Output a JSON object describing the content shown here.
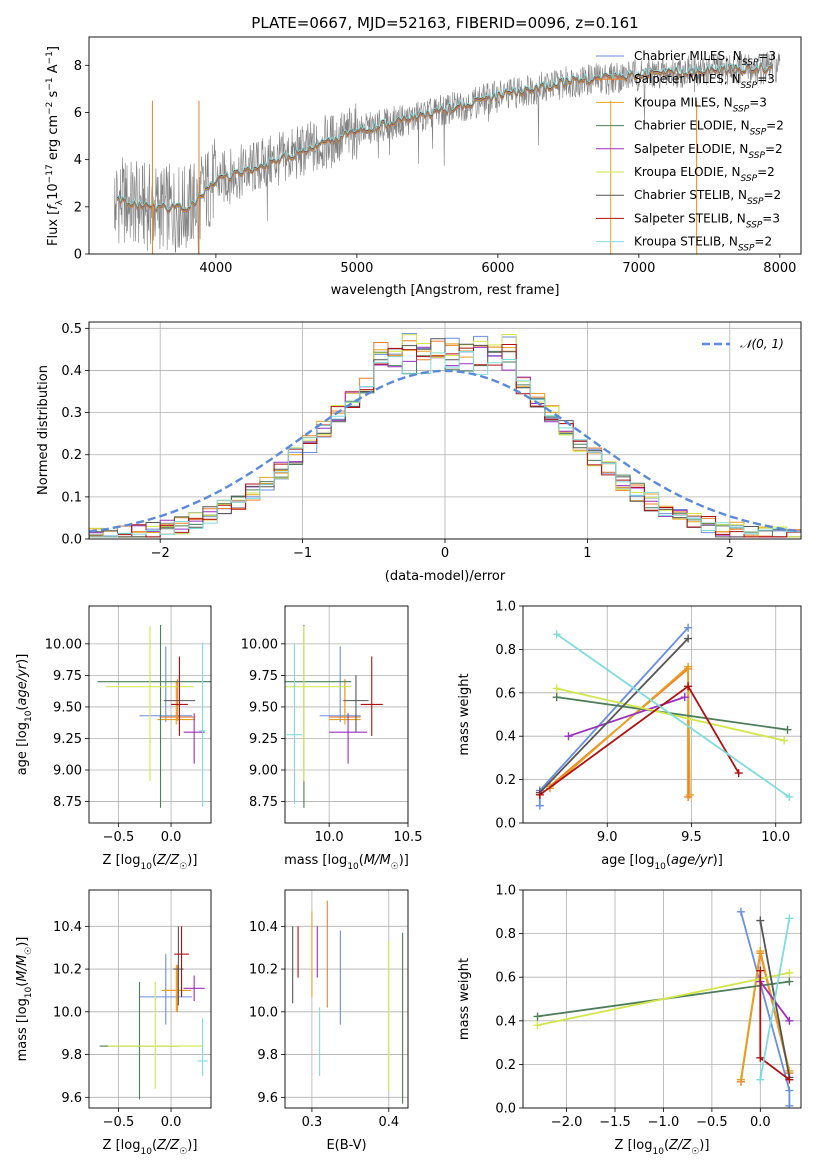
{
  "colors": {
    "chabrier_miles": "#6a8ee0",
    "salpeter_miles": "#ee7f2a",
    "kroupa_miles": "#e8a020",
    "chabrier_elodie": "#4e7d5a",
    "salpeter_elodie": "#9b2fbf",
    "kroupa_elodie": "#d2e64a",
    "chabrier_stelib": "#555555",
    "salpeter_stelib": "#b01010",
    "kroupa_stelib": "#80dcdc",
    "data": "#7f7f7f",
    "normal": "#5b8ad8",
    "grid": "#b0b0b0"
  },
  "chart_data": [
    {
      "id": "spectrum",
      "type": "line",
      "title": "PLATE=0667, MJD=52163, FIBERID=0096, z=0.161",
      "xlabel": "wavelength [Angstrom, rest frame]",
      "ylabel_parts": [
        "Flux [",
        "f",
        "λ",
        "10",
        "−17",
        " erg cm",
        "−2",
        " s",
        "−1",
        " A",
        "−1",
        "]"
      ],
      "xlim": [
        3100,
        8150
      ],
      "ylim": [
        0,
        9.2
      ],
      "xticks": [
        4000,
        5000,
        6000,
        7000,
        8000
      ],
      "yticks": [
        0,
        2,
        4,
        6,
        8
      ],
      "grid": false,
      "legend_position": "top-right",
      "legend": [
        {
          "name": "Chabrier MILES",
          "nssp": "3"
        },
        {
          "name": "Salpeter MILES",
          "nssp": "3"
        },
        {
          "name": "Kroupa MILES",
          "nssp": "3"
        },
        {
          "name": "Chabrier ELODIE",
          "nssp": "2"
        },
        {
          "name": "Salpeter ELODIE",
          "nssp": "2"
        },
        {
          "name": "Kroupa ELODIE",
          "nssp": "2"
        },
        {
          "name": "Chabrier STELIB",
          "nssp": "2"
        },
        {
          "name": "Salpeter STELIB",
          "nssp": "3"
        },
        {
          "name": "Kroupa STELIB",
          "nssp": "2"
        }
      ],
      "continuum_knots": [
        [
          3300,
          2.3
        ],
        [
          3500,
          2.0
        ],
        [
          3800,
          1.9
        ],
        [
          4000,
          3.1
        ],
        [
          4300,
          3.7
        ],
        [
          4600,
          4.3
        ],
        [
          5000,
          5.2
        ],
        [
          5500,
          5.9
        ],
        [
          6000,
          6.7
        ],
        [
          6500,
          7.3
        ],
        [
          7000,
          7.6
        ],
        [
          7500,
          7.8
        ],
        [
          8000,
          7.9
        ]
      ]
    },
    {
      "id": "residuals",
      "type": "histogram",
      "xlabel": "(data-model)/error",
      "ylabel": "Normed distribution",
      "xlim": [
        -2.5,
        2.5
      ],
      "ylim": [
        0,
        0.515
      ],
      "xticks": [
        -2,
        -1,
        0,
        1,
        2
      ],
      "yticks": [
        0.0,
        0.1,
        0.2,
        0.3,
        0.4,
        0.5
      ],
      "grid": true,
      "legend_position": "top-right",
      "legend": "𝒩(0, 1)",
      "bin_width": 0.1,
      "bin_start": -2.5,
      "reference_mean": 0,
      "reference_sigma": 1,
      "peak_values": [
        0.49,
        0.48,
        0.47,
        0.45,
        0.46
      ]
    },
    {
      "id": "z-age",
      "type": "errorbar",
      "xlabel": "Z [log10(Z/Z☉)]",
      "ylabel": "age  [log10(age/yr)]",
      "xlim": [
        -0.78,
        0.38
      ],
      "ylim": [
        8.58,
        10.3
      ],
      "xticks": [
        -0.5,
        0.0
      ],
      "yticks": [
        8.75,
        9.0,
        9.25,
        9.5,
        9.75,
        10.0
      ],
      "grid": true,
      "points": [
        {
          "series": "chabrier_miles",
          "x": -0.05,
          "xerr": 0.25,
          "y": 9.43,
          "yerr": [
            0.05,
            0.55
          ]
        },
        {
          "series": "salpeter_miles",
          "x": 0.06,
          "xerr": 0.17,
          "y": 9.42,
          "yerr": [
            0.03,
            0.3
          ]
        },
        {
          "series": "kroupa_miles",
          "x": 0.05,
          "xerr": 0.18,
          "y": 9.4,
          "yerr": [
            0.04,
            0.3
          ]
        },
        {
          "series": "chabrier_elodie",
          "x": -0.1,
          "xerr": 0.6,
          "y": 9.7,
          "yerr": [
            1.0,
            0.45
          ]
        },
        {
          "series": "salpeter_elodie",
          "x": 0.22,
          "xerr": 0.1,
          "y": 9.3,
          "yerr": [
            0.25,
            0.15
          ]
        },
        {
          "series": "kroupa_elodie",
          "x": -0.2,
          "xerr": 0.42,
          "y": 9.66,
          "yerr": [
            0.75,
            0.48
          ]
        },
        {
          "series": "chabrier_stelib",
          "x": 0.08,
          "xerr": 0.15,
          "y": 9.55,
          "yerr": [
            0.25,
            0.2
          ]
        },
        {
          "series": "salpeter_stelib",
          "x": 0.08,
          "xerr": 0.08,
          "y": 9.52,
          "yerr": [
            0.25,
            0.38
          ]
        },
        {
          "series": "kroupa_stelib",
          "x": 0.3,
          "xerr": 0.03,
          "y": 9.31,
          "yerr": [
            0.6,
            0.7
          ]
        }
      ]
    },
    {
      "id": "mass-age",
      "type": "errorbar",
      "xlabel": "mass [log10(M/M☉)]",
      "ylabel": "",
      "xlim": [
        9.72,
        10.5
      ],
      "ylim": [
        8.58,
        10.3
      ],
      "xticks": [
        10.0,
        10.5
      ],
      "yticks": [
        8.75,
        9.0,
        9.25,
        9.5,
        9.75,
        10.0
      ],
      "grid": true,
      "points": [
        {
          "series": "chabrier_miles",
          "x": 10.07,
          "xerr": 0.13,
          "y": 9.43,
          "yerr": [
            0.05,
            0.55
          ]
        },
        {
          "series": "salpeter_miles",
          "x": 10.1,
          "xerr": 0.1,
          "y": 9.42,
          "yerr": [
            0.03,
            0.3
          ]
        },
        {
          "series": "kroupa_miles",
          "x": 10.1,
          "xerr": 0.1,
          "y": 9.4,
          "yerr": [
            0.04,
            0.3
          ]
        },
        {
          "series": "chabrier_elodie",
          "x": 9.84,
          "xerr": 0.3,
          "y": 9.7,
          "yerr": [
            1.0,
            0.45
          ]
        },
        {
          "series": "salpeter_elodie",
          "x": 10.12,
          "xerr": 0.12,
          "y": 9.3,
          "yerr": [
            0.25,
            0.15
          ]
        },
        {
          "series": "kroupa_elodie",
          "x": 9.84,
          "xerr": 0.3,
          "y": 9.66,
          "yerr": [
            0.75,
            0.48
          ]
        },
        {
          "series": "chabrier_stelib",
          "x": 10.17,
          "xerr": 0.08,
          "y": 9.55,
          "yerr": [
            0.25,
            0.2
          ]
        },
        {
          "series": "salpeter_stelib",
          "x": 10.27,
          "xerr": 0.07,
          "y": 9.52,
          "yerr": [
            0.25,
            0.38
          ]
        },
        {
          "series": "kroupa_stelib",
          "x": 9.78,
          "xerr": 0.05,
          "y": 9.28,
          "yerr": [
            0.55,
            0.72
          ]
        }
      ]
    },
    {
      "id": "age-weight",
      "type": "line",
      "xlabel": "age  [log10(age/yr)]",
      "ylabel": "mass weight",
      "xlim": [
        8.5,
        10.15
      ],
      "ylim": [
        0,
        1
      ],
      "xticks": [
        9.0,
        9.5,
        10.0
      ],
      "yticks": [
        0.0,
        0.2,
        0.4,
        0.6,
        0.8,
        1.0
      ],
      "grid": true,
      "series": [
        {
          "series": "chabrier_miles",
          "points": [
            [
              8.6,
              0.08
            ],
            [
              8.6,
              0.15
            ],
            [
              9.48,
              0.9
            ]
          ]
        },
        {
          "series": "salpeter_miles",
          "points": [
            [
              8.66,
              0.17
            ],
            [
              9.48,
              0.71
            ],
            [
              9.48,
              0.12
            ]
          ]
        },
        {
          "series": "kroupa_miles",
          "points": [
            [
              8.66,
              0.16
            ],
            [
              9.48,
              0.72
            ],
            [
              9.49,
              0.13
            ]
          ]
        },
        {
          "series": "chabrier_elodie",
          "points": [
            [
              8.7,
              0.58
            ],
            [
              10.07,
              0.43
            ]
          ]
        },
        {
          "series": "salpeter_elodie",
          "points": [
            [
              8.77,
              0.4
            ],
            [
              9.46,
              0.58
            ]
          ]
        },
        {
          "series": "kroupa_elodie",
          "points": [
            [
              8.7,
              0.62
            ],
            [
              10.05,
              0.38
            ]
          ]
        },
        {
          "series": "chabrier_stelib",
          "points": [
            [
              8.6,
              0.14
            ],
            [
              9.48,
              0.85
            ]
          ]
        },
        {
          "series": "salpeter_stelib",
          "points": [
            [
              8.6,
              0.13
            ],
            [
              9.48,
              0.63
            ],
            [
              9.78,
              0.23
            ]
          ]
        },
        {
          "series": "kroupa_stelib",
          "points": [
            [
              8.7,
              0.87
            ],
            [
              10.08,
              0.12
            ]
          ]
        }
      ]
    },
    {
      "id": "z-mass",
      "type": "errorbar",
      "xlabel": "Z [log10(Z/Z☉)]",
      "ylabel": "mass [log10(M/M☉)]",
      "xlim": [
        -0.78,
        0.38
      ],
      "ylim": [
        9.55,
        10.57
      ],
      "xticks": [
        -0.5,
        0.0
      ],
      "yticks": [
        9.6,
        9.8,
        10.0,
        10.2,
        10.4
      ],
      "grid": true,
      "points": [
        {
          "series": "chabrier_miles",
          "x": -0.05,
          "xerr": 0.25,
          "y": 10.07,
          "yerr": [
            0.13,
            0.2
          ]
        },
        {
          "series": "salpeter_miles",
          "x": 0.06,
          "xerr": 0.12,
          "y": 10.1,
          "yerr": [
            0.1,
            0.12
          ]
        },
        {
          "series": "kroupa_miles",
          "x": 0.05,
          "xerr": 0.14,
          "y": 10.1,
          "yerr": [
            0.1,
            0.12
          ]
        },
        {
          "series": "chabrier_elodie",
          "x": -0.3,
          "xerr": 0.38,
          "y": 9.84,
          "yerr": [
            0.25,
            0.3
          ]
        },
        {
          "series": "salpeter_elodie",
          "x": 0.22,
          "xerr": 0.1,
          "y": 10.11,
          "yerr": [
            0.06,
            0.06
          ]
        },
        {
          "series": "kroupa_elodie",
          "x": -0.15,
          "xerr": 0.45,
          "y": 9.84,
          "yerr": [
            0.2,
            0.3
          ]
        },
        {
          "series": "chabrier_stelib",
          "x": 0.07,
          "xerr": 0.05,
          "y": 10.2,
          "yerr": [
            0.17,
            0.2
          ]
        },
        {
          "series": "salpeter_stelib",
          "x": 0.1,
          "xerr": 0.07,
          "y": 10.27,
          "yerr": [
            0.2,
            0.13
          ]
        },
        {
          "series": "kroupa_stelib",
          "x": 0.3,
          "xerr": 0.05,
          "y": 9.77,
          "yerr": [
            0.07,
            0.2
          ]
        }
      ]
    },
    {
      "id": "ebv",
      "type": "errorbar",
      "xlabel": "E(B-V)",
      "ylabel": "",
      "xlim": [
        0.265,
        0.425
      ],
      "ylim": [
        9.55,
        10.57
      ],
      "xticks": [
        0.3,
        0.4
      ],
      "yticks": [
        9.6,
        9.8,
        10.0,
        10.2,
        10.4
      ],
      "grid": true,
      "points": [
        {
          "series": "chabrier_miles",
          "x": 0.337,
          "y": 10.16,
          "yerr": [
            0.22,
            0.22
          ]
        },
        {
          "series": "salpeter_miles",
          "x": 0.32,
          "y": 10.27,
          "yerr": [
            0.25,
            0.25
          ]
        },
        {
          "series": "kroupa_miles",
          "x": 0.3,
          "y": 10.27,
          "yerr": [
            0.2,
            0.2
          ]
        },
        {
          "series": "chabrier_elodie",
          "x": 0.418,
          "y": 9.97,
          "yerr": [
            0.4,
            0.4
          ]
        },
        {
          "series": "salpeter_elodie",
          "x": 0.307,
          "y": 10.28,
          "yerr": [
            0.12,
            0.12
          ]
        },
        {
          "series": "kroupa_elodie",
          "x": 0.4,
          "y": 9.98,
          "yerr": [
            0.35,
            0.35
          ]
        },
        {
          "series": "chabrier_stelib",
          "x": 0.275,
          "y": 10.22,
          "yerr": [
            0.18,
            0.18
          ]
        },
        {
          "series": "salpeter_stelib",
          "x": 0.282,
          "y": 10.28,
          "yerr": [
            0.12,
            0.12
          ]
        },
        {
          "series": "kroupa_stelib",
          "x": 0.31,
          "y": 9.86,
          "yerr": [
            0.16,
            0.16
          ]
        }
      ]
    },
    {
      "id": "z-weight",
      "type": "line",
      "xlabel": "Z [log10(Z/Z☉)]",
      "ylabel": "mass weight",
      "xlim": [
        -2.45,
        0.42
      ],
      "ylim": [
        0,
        1
      ],
      "xticks": [
        -2.0,
        -1.5,
        -1.0,
        -0.5,
        0.0
      ],
      "yticks": [
        0.0,
        0.2,
        0.4,
        0.6,
        0.8,
        1.0
      ],
      "grid": true,
      "series": [
        {
          "series": "chabrier_miles",
          "points": [
            [
              -0.2,
              0.9
            ],
            [
              0.3,
              0.08
            ],
            [
              0.3,
              0.01
            ]
          ]
        },
        {
          "series": "salpeter_miles",
          "points": [
            [
              -0.2,
              0.12
            ],
            [
              0.0,
              0.71
            ],
            [
              0.3,
              0.16
            ]
          ]
        },
        {
          "series": "kroupa_miles",
          "points": [
            [
              -0.2,
              0.13
            ],
            [
              0.0,
              0.72
            ],
            [
              0.3,
              0.17
            ]
          ]
        },
        {
          "series": "chabrier_elodie",
          "points": [
            [
              -2.3,
              0.42
            ],
            [
              0.3,
              0.58
            ]
          ]
        },
        {
          "series": "salpeter_elodie",
          "points": [
            [
              0.0,
              0.58
            ],
            [
              0.3,
              0.4
            ]
          ]
        },
        {
          "series": "kroupa_elodie",
          "points": [
            [
              -2.3,
              0.38
            ],
            [
              0.3,
              0.62
            ]
          ]
        },
        {
          "series": "chabrier_stelib",
          "points": [
            [
              0.0,
              0.86
            ],
            [
              0.3,
              0.14
            ]
          ]
        },
        {
          "series": "salpeter_stelib",
          "points": [
            [
              0.0,
              0.63
            ],
            [
              0.0,
              0.23
            ],
            [
              0.3,
              0.13
            ]
          ]
        },
        {
          "series": "kroupa_stelib",
          "points": [
            [
              0.0,
              0.13
            ],
            [
              0.3,
              0.87
            ]
          ]
        }
      ]
    }
  ]
}
